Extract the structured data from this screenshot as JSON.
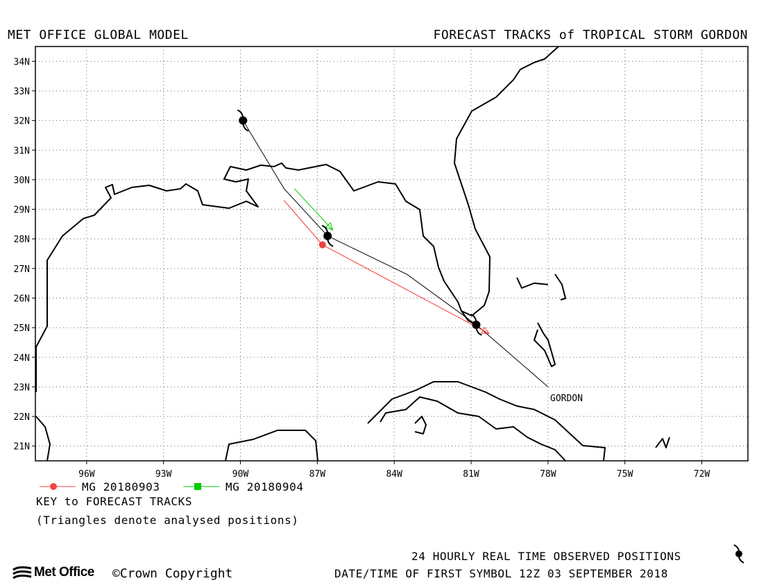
{
  "header": {
    "left_title": "MET OFFICE GLOBAL MODEL",
    "right_title": "FORECAST TRACKS of TROPICAL STORM GORDON"
  },
  "map": {
    "lat_ticks": [
      "34N",
      "33N",
      "32N",
      "31N",
      "30N",
      "29N",
      "28N",
      "27N",
      "26N",
      "25N",
      "24N",
      "23N",
      "22N",
      "21N"
    ],
    "lon_ticks": [
      "96W",
      "93W",
      "90W",
      "87W",
      "84W",
      "81W",
      "78W",
      "75W",
      "72W"
    ],
    "grid": true,
    "storm_label": "GORDON"
  },
  "chart_data": {
    "type": "scatter",
    "title": "FORECAST TRACKS of TROPICAL STORM GORDON",
    "xlabel": "",
    "ylabel": "",
    "xlim": [
      -98,
      -70.2
    ],
    "ylim": [
      20.5,
      34.5
    ],
    "x_ticks": [
      "96W",
      "93W",
      "90W",
      "87W",
      "84W",
      "81W",
      "78W",
      "75W",
      "72W"
    ],
    "y_ticks": [
      "34N",
      "33N",
      "32N",
      "31N",
      "30N",
      "29N",
      "28N",
      "27N",
      "26N",
      "25N",
      "24N",
      "23N",
      "22N",
      "21N"
    ],
    "series": [
      {
        "name": "GORDON",
        "color": "#000000",
        "points": [
          [
            -78.0,
            23.0
          ],
          [
            -80.8,
            25.1
          ],
          [
            -83.5,
            26.8
          ],
          [
            -86.6,
            28.1
          ],
          [
            -88.3,
            29.7
          ],
          [
            -89.9,
            32.0
          ]
        ]
      },
      {
        "name": "MG 20180903",
        "color": "#ff3333",
        "points": [
          [
            -88.3,
            29.3
          ],
          [
            -86.8,
            27.8
          ],
          [
            -80.3,
            24.8
          ]
        ]
      },
      {
        "name": "MG 20180904",
        "color": "#00cc00",
        "points": [
          [
            -87.9,
            29.7
          ],
          [
            -86.4,
            28.3
          ]
        ]
      }
    ],
    "observed_positions": [
      [
        -89.9,
        32.0
      ],
      [
        -86.6,
        28.1
      ],
      [
        -80.8,
        25.1
      ]
    ],
    "legend_position": "below"
  },
  "legend": {
    "series1_label": "MG 20180903",
    "series1_color": "#ee4444",
    "series2_label": "MG 20180904",
    "series2_color": "#00cc00",
    "key_label": "KEY to FORECAST TRACKS",
    "triangles_note": "(Triangles denote analysed positions)"
  },
  "footer": {
    "observed_label": "24 HOURLY REAL TIME OBSERVED POSITIONS",
    "datetime_label": "DATE/TIME OF FIRST SYMBOL 12Z 03 SEPTEMBER 2018",
    "logo_text": "Met Office",
    "copyright_text": "©Crown Copyright"
  }
}
